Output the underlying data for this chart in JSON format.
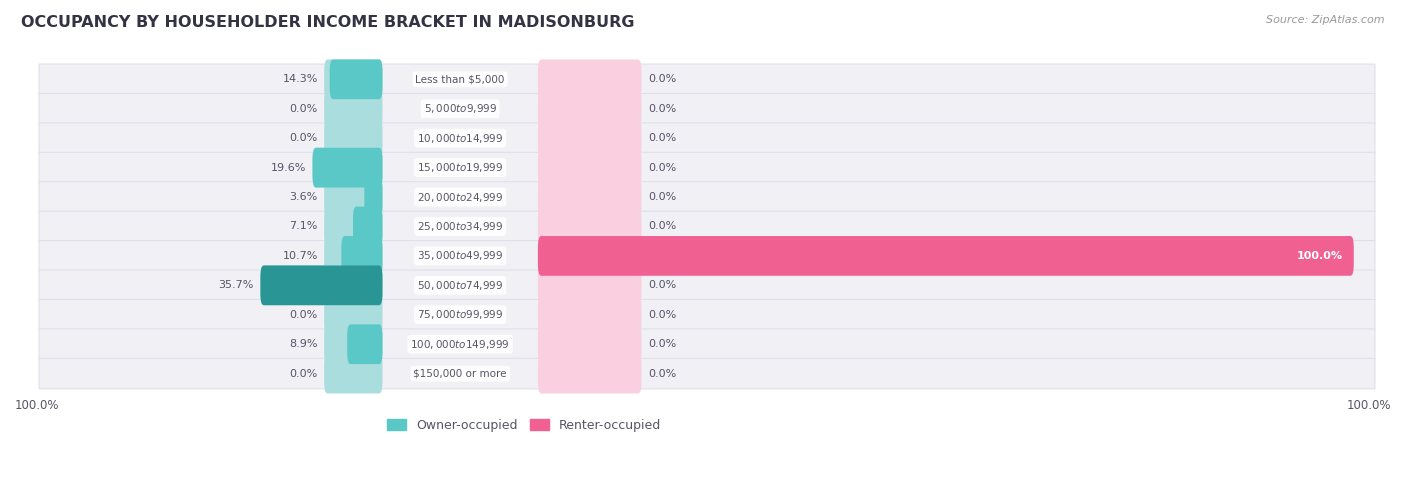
{
  "title": "OCCUPANCY BY HOUSEHOLDER INCOME BRACKET IN MADISONBURG",
  "source": "Source: ZipAtlas.com",
  "categories": [
    "Less than $5,000",
    "$5,000 to $9,999",
    "$10,000 to $14,999",
    "$15,000 to $19,999",
    "$20,000 to $24,999",
    "$25,000 to $34,999",
    "$35,000 to $49,999",
    "$50,000 to $74,999",
    "$75,000 to $99,999",
    "$100,000 to $149,999",
    "$150,000 or more"
  ],
  "owner_values": [
    14.3,
    0.0,
    0.0,
    19.6,
    3.6,
    7.1,
    10.7,
    35.7,
    0.0,
    8.9,
    0.0
  ],
  "renter_values": [
    0.0,
    0.0,
    0.0,
    0.0,
    0.0,
    0.0,
    100.0,
    0.0,
    0.0,
    0.0,
    0.0
  ],
  "owner_color": "#5bc8c8",
  "owner_color_dark": "#2a9595",
  "renter_color": "#f06090",
  "renter_color_light": "#f8c0d4",
  "owner_placeholder_color": "#aadddd",
  "renter_placeholder_color": "#fad0e0",
  "row_bg_color": "#f0f0f5",
  "row_border_color": "#e0e0ea",
  "text_color": "#555566",
  "title_color": "#333344",
  "source_color": "#999999",
  "legend_owner": "Owner-occupied",
  "legend_renter": "Renter-occupied",
  "max_owner_pct": 100,
  "max_renter_pct": 100,
  "bar_height": 0.55
}
